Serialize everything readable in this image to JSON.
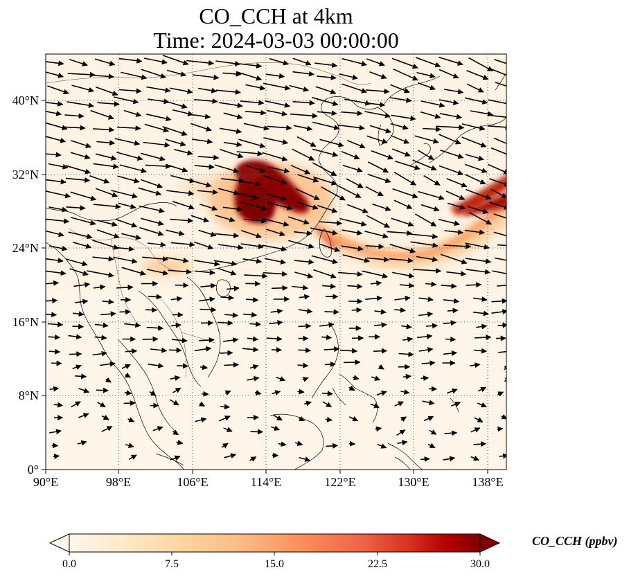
{
  "title_line1": "CO_CCH at 4km",
  "title_line2": "Time: 2024-03-03 00:00:00",
  "lat_labels": [
    "40°N",
    "32°N",
    "24°N",
    "16°N",
    "8°N",
    "0°"
  ],
  "lon_labels": [
    "90°E",
    "98°E",
    "106°E",
    "114°E",
    "122°E",
    "130°E",
    "138°E"
  ],
  "colorbar": {
    "label": "CO_CCH (ppbv)",
    "ticks": [
      "0.0",
      "7.5",
      "15.0",
      "22.5",
      "30.0"
    ],
    "range": [
      0,
      30
    ],
    "extend": "both",
    "colormap": "OrRd",
    "colors": [
      "#fff7ec",
      "#fee8c8",
      "#fdd49e",
      "#fdbb84",
      "#fc8d59",
      "#ef6548",
      "#d7301f",
      "#b30000",
      "#7f0000"
    ]
  },
  "map": {
    "lon_range": [
      90,
      140
    ],
    "lat_range": [
      0,
      45
    ],
    "gridlines": "dotted",
    "background_color": "#fff3e3",
    "plume_regions": [
      {
        "name": "central-china-plume",
        "max_value": 30
      },
      {
        "name": "east-china-sea-band",
        "max_value": 22
      },
      {
        "name": "pacific-band-east",
        "max_value": 30
      }
    ],
    "wind_vectors": "westerly flow, strongest north of 20°N"
  }
}
